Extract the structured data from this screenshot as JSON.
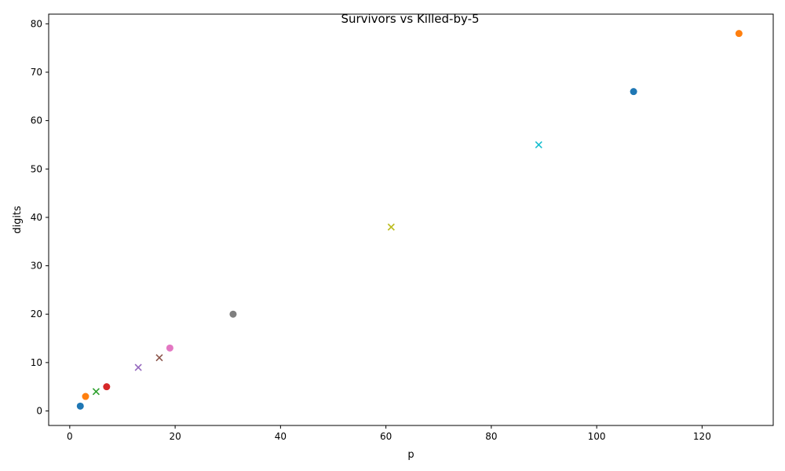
{
  "chart_data": {
    "type": "scatter",
    "title": "Survivors vs Killed-by-5",
    "xlabel": "p",
    "ylabel": "digits",
    "xlim": [
      -4,
      133.5
    ],
    "ylim": [
      -3,
      82
    ],
    "xticks": [
      0,
      20,
      40,
      60,
      80,
      100,
      120
    ],
    "yticks": [
      0,
      10,
      20,
      30,
      40,
      50,
      60,
      70,
      80
    ],
    "grid": false,
    "legend": null,
    "points": [
      {
        "x": 2,
        "y": 1,
        "marker": "circle",
        "color": "#1f77b4"
      },
      {
        "x": 3,
        "y": 3,
        "marker": "circle",
        "color": "#ff7f0e"
      },
      {
        "x": 5,
        "y": 4,
        "marker": "x",
        "color": "#2ca02c"
      },
      {
        "x": 7,
        "y": 5,
        "marker": "circle",
        "color": "#d62728"
      },
      {
        "x": 13,
        "y": 9,
        "marker": "x",
        "color": "#9467bd"
      },
      {
        "x": 17,
        "y": 11,
        "marker": "x",
        "color": "#8c564b"
      },
      {
        "x": 19,
        "y": 13,
        "marker": "circle",
        "color": "#e377c2"
      },
      {
        "x": 31,
        "y": 20,
        "marker": "circle",
        "color": "#7f7f7f"
      },
      {
        "x": 61,
        "y": 38,
        "marker": "x",
        "color": "#bcbd22"
      },
      {
        "x": 89,
        "y": 55,
        "marker": "x",
        "color": "#17becf"
      },
      {
        "x": 107,
        "y": 66,
        "marker": "circle",
        "color": "#1f77b4"
      },
      {
        "x": 127,
        "y": 78,
        "marker": "circle",
        "color": "#ff7f0e"
      }
    ]
  }
}
